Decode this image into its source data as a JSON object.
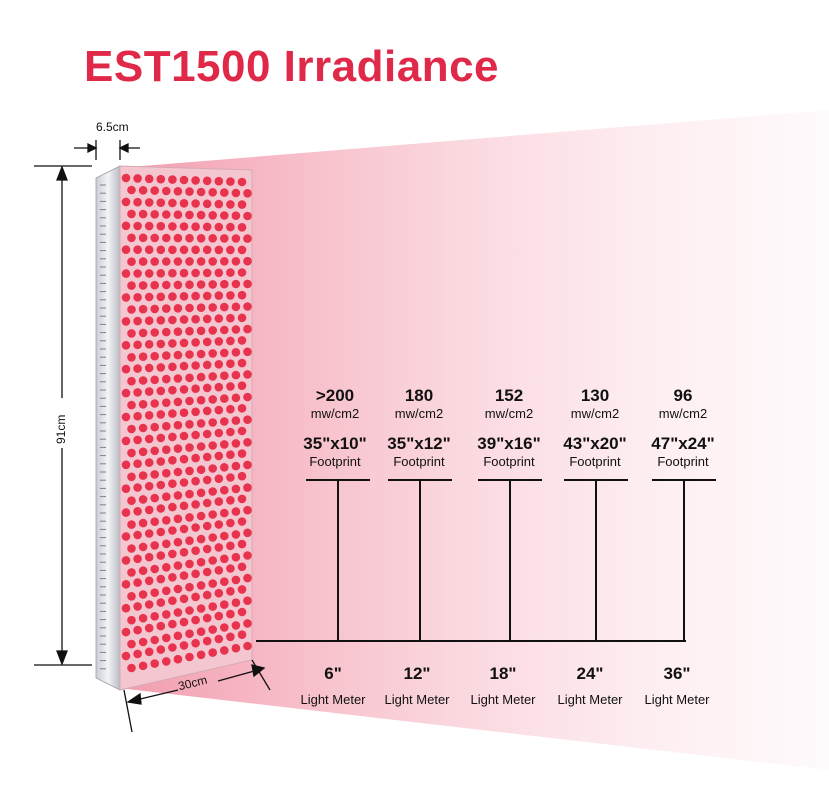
{
  "title": "EST1500 Irradiance",
  "dimensions": {
    "depth": "6.5cm",
    "height": "91cm",
    "width": "30cm"
  },
  "columns": [
    {
      "irradiance": ">200",
      "unit": "mw/cm2",
      "footprint": "35\"x10\"",
      "footprint_label": "Footprint",
      "distance": "6\"",
      "meter_label": "Light Meter"
    },
    {
      "irradiance": "180",
      "unit": "mw/cm2",
      "footprint": "35\"x12\"",
      "footprint_label": "Footprint",
      "distance": "12\"",
      "meter_label": "Light Meter"
    },
    {
      "irradiance": "152",
      "unit": "mw/cm2",
      "footprint": "39\"x16\"",
      "footprint_label": "Footprint",
      "distance": "18\"",
      "meter_label": "Light Meter"
    },
    {
      "irradiance": "130",
      "unit": "mw/cm2",
      "footprint": "43\"x20\"",
      "footprint_label": "Footprint",
      "distance": "24\"",
      "meter_label": "Light Meter"
    },
    {
      "irradiance": "96",
      "unit": "mw/cm2",
      "footprint": "47\"x24\"",
      "footprint_label": "Footprint",
      "distance": "36\"",
      "meter_label": "Light Meter"
    }
  ],
  "colors": {
    "title": "#e02849",
    "led": "#e8334f",
    "beam": "#f5a9b6"
  }
}
